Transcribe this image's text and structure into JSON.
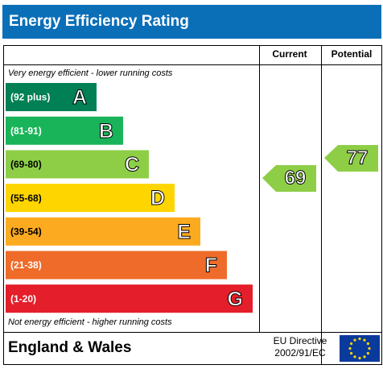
{
  "title": "Energy Efficiency Rating",
  "headers": {
    "current": "Current",
    "potential": "Potential"
  },
  "top_note": "Very energy efficient - lower running costs",
  "bottom_note": "Not energy efficient - higher running costs",
  "bands": [
    {
      "range": "(92 plus)",
      "letter": "A",
      "color": "#008054"
    },
    {
      "range": "(81-91)",
      "letter": "B",
      "color": "#19b459"
    },
    {
      "range": "(69-80)",
      "letter": "C",
      "color": "#8dce46"
    },
    {
      "range": "(55-68)",
      "letter": "D",
      "color": "#ffd500"
    },
    {
      "range": "(39-54)",
      "letter": "E",
      "color": "#fcaa1f"
    },
    {
      "range": "(21-38)",
      "letter": "F",
      "color": "#ef6b2a"
    },
    {
      "range": "(1-20)",
      "letter": "G",
      "color": "#e41e2a"
    }
  ],
  "current": 69,
  "potential": 77,
  "footer": {
    "region": "England & Wales",
    "directive_line1": "EU Directive",
    "directive_line2": "2002/91/EC"
  }
}
